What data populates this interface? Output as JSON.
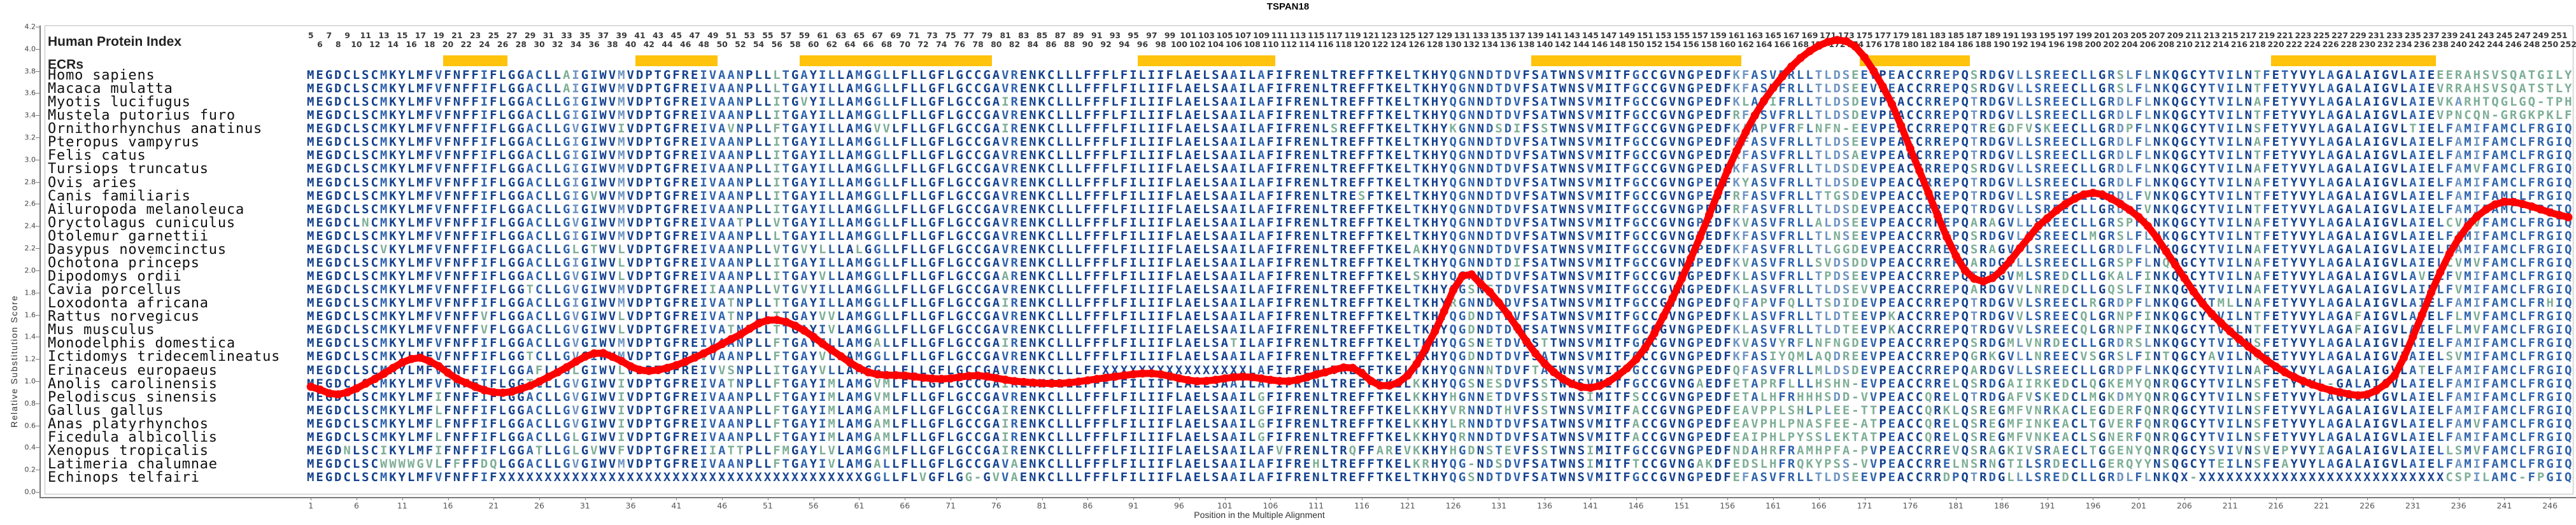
{
  "title": "TSPAN18",
  "header": {
    "human_protein_index_label": "Human Protein Index",
    "ecrs_label": "ECRs",
    "index_start": 5,
    "index_end": 252
  },
  "y_axis": {
    "label": "Relative Substitution Score",
    "min": 0.0,
    "max": 4.2,
    "step": 0.2
  },
  "x_axis": {
    "label": "Position in the Multiple Alignment",
    "tick_start": 1,
    "tick_step": 5,
    "tick_end": 246,
    "columns": 248
  },
  "ecr_regions": [
    [
      16,
      22
    ],
    [
      37,
      45
    ],
    [
      55,
      75
    ],
    [
      92,
      106
    ],
    [
      135,
      157
    ],
    [
      171,
      182
    ],
    [
      216,
      233
    ]
  ],
  "colors": {
    "ecr_bar": "#FFC30D",
    "curve": "#FF0000",
    "seq_conserved": "#14418D",
    "seq_high": "#2F63AC",
    "seq_mid": "#6E94C2",
    "seq_low": "#7EAE97",
    "axis": "#7a7a7a"
  },
  "alignment": {
    "species": [
      {
        "name": "Homo sapiens",
        "seq": "MEGDCLSCMKYLMFVFNFFIFLGGACLLAIGIWVMVDPTGFREIVAANPLLLTGAYILLAMGGLLFLLGFLGCCGAVRENKCLLLFFFLFILIIFLAELSAAILAFIFRENLTREFFTKELTKHYQGNNDTDVFSATWNSVMITFGCCGVNGPEDFKFASVFRLLTLDSEEVPEACCRREPQSRDGVLLSREECLLGRSLFLNKQGCYTVILNTFETYVYLAGALAIGVLAIEEERAHSVSQATGILY"
      },
      {
        "name": "Macaca mulatta",
        "seq": "MEGDCLSCMKYLMFVFNFFIFLGGACLLAIGIWVMVDPTGFREIVAANPLLLTGAYILLAMGGLLFLLGFLGCCGAVRENKCLLLFFFLFILIIFLAELSAAILAFIFRENLTREFFTKELTKHYQGNNDTDVFSATWNSVMITFGCCGVNGPEDFKFASVFRLLTLDSEEVPEACCRREPQSRDGVLLSREECLLGRSLFLNKQGCYTVILNTFETYVYLAGALAIGVLAIEVRRAHSVSQATSTLY"
      },
      {
        "name": "Myotis lucifugus",
        "seq": "MEGDCLSCMKYLMFVFNFFIFLGGACLLGIGIWVMVDPTGFREIVAANPLLITGVYILLAMGGLLFLLGFLGCCGAIRENKCLLLFFFLFILIIFLAELSAAILAFIFRENLTREFFTKELTKHYQGNNDTDVFSATWNSVMITFGCCGVNGPEDFKLASIFRLLTLDSDEVPEACCRREPQTRDGVLLSREECLLGRDLFLNKQGCYTVILNAFETYVYLAGALAIGVLAIEVKARHTQGLGQ-TPH"
      },
      {
        "name": "Mustela putorius furo",
        "seq": "MEGDCLSCMKYLMFVFNFFIFLGGACLLGIGIWVMVDPTGFREIVAANPLLITGAYILLAMGGLLFLLGFLGCCGAVRENKCLLLFFFLFILIIFLAELSAAILAFIFRENLTREFFTKELTKHYQGNNDTDVFSATWNSVMITFGCCGVNGPEDFRFASVFRLLTLDSDEVPEACCRREPQTRDGVLLSREECLLGRDLFLNKQGCYTVILNTFETYVYLAGALAIGVLAIEVPNCQN-GRGKPKLF"
      },
      {
        "name": "Ornithorhynchus anatinus",
        "seq": "MEGDCLSCMKYLMFVFNFFIFLGGACLLGVGIWVIVDPTGFREIVAVNPLLFTGAYILLAMGVVLFLLGFLGCCGAIRENKCLLLFFFLFILIIFLAELSAAILAFIFRENLSREFFTKELTKHYKGNNDSDIFSSTWNSVMITFGCCGVNGPEDFKAAPVFRFLNFN-EEVPEACCRREPQTREGDFVSKEECLLGRDPFLNKQGCYTVILNSFETYVYLAGALAIGVLTIELFAMIFAMCLFRGIQ"
      },
      {
        "name": "Pteropus vampyrus",
        "seq": "MEGDCLSCMKYLMFVFNFFIFLGGACLLGIGIWVMVDPTGFREIVAANPLLITGAYILLAMGGLLFLLGFLGCCGAVRENKCLLLFFFLFILIIFLAELSAAILAFIFRENLTREFFTKELTKHYQGNNDTDVFSATWNSVMITFGCCGVNGPEDFKFASVFRLLTLDSEEVPEACCRREPQTRDGVLLSREECLLGRDLFLNKQGCYTVILNAFETYVYLAGALAIGVLAIELFAMIFAMCLFRGIQ"
      },
      {
        "name": "Felis catus",
        "seq": "MEGDCLSCMKYLMFVFNFFIFLGGACLLGIGIWVMVDPTGFREIVAANPLLITGAYILLAMGGLLFLLGFLGCCGAVRENKCLLLFFFLFILIIFLAELSAAILAFIFRENLTREFFTKELTKHYQGNNDTDVFSATWNSVMITFGCCGVNGPEDFRFASVFRLLTLDSAEVPEACCRREPQTRDGVLLSREECLLGRDLFLNKQGCYTVILNTFETYVYLAGALAIGVLAIELFAMIFAMCLFRGIQ"
      },
      {
        "name": "Tursiops truncatus",
        "seq": "MEGDCLSCMKYLMFVFNFFIFLGGACLLGIGIWVMVDPTGFREIVAANPLLITGAYILLAMGGLLFLLGFLGCCGAVRENKCLLLFFFLFILIIFLAELSAAILAFIFRENLTREFFTKELTKHYQGNNDTDVFSATWNSVMITFGCCGVNGPEDFKFASVFRLLTLDSDEVPEACCRREPQSRDGVLLSREECLLGRDLFLNKQGCYTVILNAFETYVYLAGALAIGVLAIELFAMVFAMCLFRGIQ"
      },
      {
        "name": "Ovis aries",
        "seq": "MEGDCLSCMKYLMFVFNFFIFLGGACLLGIGIWVMVDPTGFREIVAANPLLITGAYILLAMGGLLFLLGFLGCCGAVRENKCLLLFFFLFILIIFLAELSAAILAFIFRENLTREFFTKELTKHYQGNNDTDVFSATWNSVMITFGCCGVNGPEDFKYASVFRLLTLDSDEVPEACCRREPQTRDGVLLSREECLLGRDLFLNKQGCYTVILNAFETYVYLAGALAIGVLAIELFAMIFAMCLFRGIQ"
      },
      {
        "name": "Canis familiaris",
        "seq": "MEGDCLSCMKYLMFVFNFFIFLGGACLLGIGVWVMVDPTGFREIVAANPLLITGAYILLAMGGLLFLLGFLGCCGAVRENKCLLLFFFLFILIIFLAELSAAILAFIFRENLTRESFTKELTKHYQGNNDTDVFSATWNSVMITFGCCGVNGPEDFRFASVFRLLTTGSDEVPEACCRREPQTRDGVLLSREECLLGRDLFVNKQGCYTVILNTFETYVYLAGALAIGVLAIELFAMIFAMCLFRGIQ"
      },
      {
        "name": "Ailuropoda melanoleuca",
        "seq": "MEGDCLSCMKYLMFVFNFFIFLGGACLLGIGIWVMVDPTGFREIVAANPLLITGAYILLAMGGLLFLLGFLGCCGAVRENKCLLLFFFLFILIIFLAELSAAILAFIFRENLTREFFTKELTKHYQGNNDTDVFSATWNSVMITFGCCGVNGPEDFRFASVFRLLTLDSDEVPEACCRREPQTRDGVLLSREECLLGRDLFVNKQGCYTVILNTFETYVYLAGALAIGVLAIELFAMIFAMCLFRGIQ"
      },
      {
        "name": "Oryctolagus cuniculus",
        "seq": "MEGDCLNCMKYLMFVFNFFIFLGGACLLGVGIWVMVDPTGFREIVAATPLLVTGAYILLAMGGLLFLLGFLGCCGAVRENKCLLLFFFLFILIIFLAELSAAILAFIFRENLTREFFTKELTKHYQGNNDTDVFSATWNSVMITFGCCGVNGPEDFKVASVFRLLALDSEEVPEACCRREPQARAGVLLSREECLLGRSPFLNKQGCYTVILNAFETYVYLAGALAIGVLAIELCVMVFAMCLFRGIQ"
      },
      {
        "name": "Otolemur garnettii",
        "seq": "MEGDCLSCMKYLMFVFNFFIFLGGACLLGIGIWVMVDPTGFREIVAANPLLLTGAYILLAMGGLLFLLGFLGCCGAVRENKCLLLFFFLFILIIFLAELSAAILAFIFRENLTREFFTKELTKHYQGNNDTDVFSATWNSVMITFGCCGVNGPEDFKFASVFRLLTLNSEEVPEACCRREPQSRDGVLLSREECLMGRSLFLNKQGCYTVILNTFETYVYLAGALAIGVLAIELFAMIFAMCLFRGIQ"
      },
      {
        "name": "Dasypus novemcinctus",
        "seq": "MEGDCLSCVKYLMFVFNFFIFLGGACLLGLGTWVLVDPTGFREIVAANPLLVTGVYLLLALGGLLFLLGFLGCCGAVRENKCLLLFFFLFILIIFLAELSAAILAFIFRENLTREFFTKELAKHYQGNNDTDVFSATWNSVMITFGCCGVNGPEDFKFASVFRLLTLGGDEVPEACCRREPQSRAGVVLSREECLLGRDLFLNKQGCYTVILNAFETYVYLAGALAIGVLAIELFAMIFAMCLFRGIQ"
      },
      {
        "name": "Ochotona princeps",
        "seq": "MEGDCLSCMKYLMFVFNFFIFLGGACLLGIGIWVLVDPTGFREIVAANPLLITGAYILLAMGGLLFLLGFLGCCGAVRENKCLLLFFFLFILIIFLAELSAAILAFIFRENLTREFFTKELTKHYQGNNDTDIFSATWNSVMITFGCCGVNGPEDFKVASVFRLLSVDSDDVPEACCRREPQARDGVLLSREECLLGRSPFLNQQGCYTVILNAFETYVYLAGALAIGVLAIELCVMVFAMCLFRGIQ"
      },
      {
        "name": "Dipodomys ordii",
        "seq": "MEGDCLSCMKYLMFVFNFFIFLGGACLLGVGIWVLVDPTGFREIVAANPLLITGAYVLLAMGGLLFLLGFLGCCGAARENKCLLLFFFLFILIIFLAELSAAILAFIFRENLTREFFTKELSKHYQGNNDTDVFSATWNSVMITFGCCGVNGPEDFKLASVFRLLTPDSEEVPEACCRREPQTRDGVMLSREDCLLGKALFINKQGCYTVILNAFETYVYLAGALAIGVLAVELFVMIFAMCLFRGIQ"
      },
      {
        "name": "Cavia porcellus",
        "seq": "MEGDCLSCMKYLMFVFNFFIFLGGTCLLGVGIWVMVDPTGFREIIAANPLLVTGVYILLAMGGLLFLLGFLGCCGAVRENKCLLLFFFLFILIIFLAELSAAILAFIFRENLTREFFTKELTKHYQGSNETDVFSATWNSVMITFGCCGVNGPEDFKLASVFRLLTLDSEVVPEACCRREPQARDGVVLNREDCLLGQSLFINKQGCYTVILNAFETYVYLAGALAIGVLAIELFVMIFAMCLFRGIQ"
      },
      {
        "name": "Loxodonta africana",
        "seq": "MEGDCLSCMKYLMFVFNFFIFLGGACLLGIGIWVMVDPTGFREIVATNPLLTTGAYILLAMGGLLFLLGFLGCCGAIRENKCLLLFFFLFILIIFLAELSAAILAFIFRENLTREFFTKELTKHYRGNNDSDVFSATWNSVMITFGCCGVNGPEDFQFAPVFQLLTSDIDEVPEACCRREPQTRDGVVLSREECLRGRDPFLNKQGCYTMLLNAFETYVYLAGALAIGVLAIELFAMIFAMCLFRHIQ"
      },
      {
        "name": "Rattus norvegicus",
        "seq": "MEGDCLSCMKYLMFVFNFFVFLGGACLLGVGIWVLVDPTGFREIVATNPLLTTGAYVVLAMGGLLFLLGFLGCCGAVRENKCLLLFFFLFILIIFLAELSAAILAFIFRENLTREFFTKELTKHYQGDNDTDVFSATWNSVMITFGCCGVNGPEDFKLASVFRLLTLDTEEVPKACCRREPQTRDGVVLSREECQLGRNPFINKQGCYTVILNTFETYVYLAGAFAIGVLAIELFLMVFAMCLFRGIQ"
      },
      {
        "name": "Mus musculus",
        "seq": "MEGDCLSCMKYLMFVFNFFVFLGGACLLGVGIWVLVDPTGFREIVATNPLLTTGAYIVLAMGGLLFLLGFLGCCGAVRENKCLLLFFFLFILIIFLAELSAAILAFIFRENLTREFFTKELTKHYQGDNDTDVFSATWNSVMITFGCCGVNGPEDFKLASVFRLLTLDTEEVPKACCRREPQTRDGVVLSREECQLGRNPFINKQGCYTVILNTFETYVYLAGAFAIGVLAIELFLMVFAMCLFRGIQ"
      },
      {
        "name": "Monodelphis domestica",
        "seq": "MEGDCLSCMKYLMFVFNFFIFLGGACLLGVGIWVMVDPTGFREIVAANPLLFTGAYILLAMGALLFLLGFLGCCGAIRENKCLLLFFFLFILIIFLAELSATILAFIFRENLTREFFTKELTKHYQGSNETDVFSTTWNSVMITFGCCGVNGPEDFKVASVYRFLNFNGDEVPEACCRREPQSRDGMLVNRDECLLGRDRSLNKQGCYTVILNSFETYVYLAGALAIGVLAIELFAMIFAMCLFRGIQ"
      },
      {
        "name": "Ictidomys tridecemlineatus",
        "seq": "MEGDCLSCMKYLMFVFNFFIFLGGTCLLGVGIWVMVDPTGFREVVAANPLLFTGAYVLLAMGGLLFLLGFLGCCGAVRENKCLLLFFFLFILIIFLAELSAAILAFIFRENLTREFFTKELTKHYQGDNDTDVFSATWNSVMITFGCCGVNGPEDFKFASIYQMLAQDREEVPEACCRREPQGRKGVLLNREECVSGRSLFINTQGCYAVILNTFETYVYLAGALAIGVLAIELSVMIFAMCLFRGIQ"
      },
      {
        "name": "Erinaceus europaeus",
        "seq": "MEGDCLSCMKYLMFVFNFFIFLGGAFLLGLGIWVLVDPTGFREIVVSNPLLITGAYVLLAMGGLLFLLGFLGCCGAVRENKCLLLFFXXXXXXXXXXXXXXXXLAFIFRENLTREFFTKELTKHYQGNNNTDVFTATWNSVMITFGCCGVNGPEDFQFASVFRLLMLDSDEVPEACCRREPQARDGVLLSREECLLGRDPFLNKQGCYTVILNAFETYVYLAGALAIGVLATELFAMIFAMCLFRGIQ"
      },
      {
        "name": "Anolis carolinensis",
        "seq": "MEGDCLSCMKYLMFVFNFFIFLGGTCLLGVGIWVIVDPTGFREIVATNPLLFTGAYIMLAMGVMLFLLGFLGCCGAIRENKCLLLFFFLFILIIFLAELSAAILAFIFRENLTREFFTKELKKHYQGSNESDVFSSTWNSVMITFGCCGVNGAEDFETAPRFLLLHSHN-EVPEACCRRELQSRDGAIIRKEDCLQGKEMYQNRQGCYTVILNSFETYVYL-GALAIGVLAIELFAMIFAMCLFRGIQ"
      },
      {
        "name": "Pelodiscus sinensis",
        "seq": "MEGDCLSCMKYLMFIFNFFIFLGGACLLGVGIWVIVDPTGFREIVAANPLLFTGAYIMLAMGVMLFLLGFLGCCGAVRENKCLLLFFFLFILIIFLAELSAAILGFIFRENLTREFFTKELKKHYHGNNETDVFSSTWNSIMITFSCCGVNGPEDFETALHFRHHHSDD-VVPEACCQRELQTRDGAFVSKEDCLMGKDMYQNRQGCYTVILNSFETYVYLAGALAIGVLAIELFAMIFAMCLFRGIQ"
      },
      {
        "name": "Gallus gallus",
        "seq": "MEGDCLSCMKYLMFLFNFFIFLGGACLLGVGIWVIVDPTGFREIVAANPLLFTGAYIMLAMGAMLFLLGFLGCCGAIRENKCLLLFFFLFILIIFLAELSAAILGFIFRENLTREFFTKELKKHYVRNNDTHVFSSTWNSVMITFACCGVNGPEDFEAVPPLSHLPLEE-TTPEACCQRKLQSREGMFVNRKACLEGDERFQNRQGCYTVILNSFETYVYLAGALAIGVLAIELFAMIFAMCLFRGIQ"
      },
      {
        "name": "Anas platyrhynchos",
        "seq": "MEGDCLSCMKYLMFLFNFFIFLGGACLLGVGIWVIVDPTGFREIVAANPLLFTGAYIMLAMGAMLFLLGFLGCCGAIRENKCLLLFFFLFILIIFLAELSAAILGFIFRENLTREFFTKELKKHYLRNNDTDVFSATWNSVMITFACCGVNGPEDFEAVPHLPNASFEE-ATPEACCQRELQSREGMFINKEACLTGVERFQNRQGCYTVILNSFETYVYLAGALAIGVLAIELFAMVFAMCLFRGIQ"
      },
      {
        "name": "Ficedula albicollis",
        "seq": "MEGDCLSCMKYLMFLFNFFIFLGGACLLGLGIWVIVDPTGFREIVAANPLLFTGAYIMLAMGAMLFLLGFLGCCGAIRENKCLLLFFFLFILIIFLAELSAAILGFIFRENLTREFFTKELKKHYQRNNDTDVFSATWNSVMITFACCGVNGPEDFEAIPHLPYSSLEKTATPEACCQRELQSREGMFVNKEACLSGNERFQNRQGCYTVILNSFETYVYLAGALAIGVLAIELFAMIFAMCLFRGIQ"
      },
      {
        "name": "Xenopus tropicalis",
        "seq": "MEGDNLSCIKYLMFIFNFFIFLGGATLLGLGVWVFVDPTGFREIIATTPLLFMGAYLVLAMGGMLFLLGFLGCCGAIRENKCLLLFFFLFILIIFLAELSAAILAFVFRENLTRQFFAREVKKHYHGDNSTEVFSSTWNSIMITFGCCGVNGPEDFNDAHRFRAMHPFA-PVPEACCRREVQSRAGKIVSRAECLTGGENYQNRQGCYSVIVNSVEPYVYIAGALAIGVLAIELLSMVFAMCLFRGIQ"
      },
      {
        "name": "Latimeria chalumnae",
        "seq": "MEGDCLSCWWWWGVLFFFFDQLGGACLLGVGIWVMVDPTGFREIVAANPLLFTGAYIVLAMGALLFLLGFLGCCGAVAENKCLLLFFFLFILIIFLAELSAAILAFIFREHLTREFFTKELKRHYQG-NDSDVFSATWNSIMITFTCCGVNGAKDFEDSLHFRQKYPSS-VVPEACCRRELNSRNGTILSRDECLLGERQYYNSQGCYTEILNSFEAYVYLAGALAIGVLAIELFAMIFAMCLFRGIQ"
      },
      {
        "name": "Echinops telfairi",
        "seq": "MEGDCLSCMKYLMFVFNFFIFXXXXXXXXXXXXXXXXXXXXXXXXXXXXXXXXXXXXXXXXGGLLFLVGFLGG-GVVAENKCLLLFFFLFILIIFLAELSAAILAFIFRENLTREFFTKELTKHYQGSNDTDVFSATWNSVMITFGCCGVNGPEDFEFASVFRLLTLDSEEVPEACCRRDPQTRDGLLLSREDCLLGRDLFLNKQX-XXXXXXXXXXXXXXXXXXXXXXXXXXXCSPILAMC-FPGIQ"
      }
    ]
  },
  "chart_data": {
    "type": "line",
    "title": "TSPAN18",
    "xlabel": "Position in the Multiple Alignment",
    "ylabel": "Relative Substitution Score",
    "xlim": [
      1,
      248
    ],
    "ylim": [
      0.0,
      4.2
    ],
    "grid": false,
    "legend": "none",
    "marker": "circle-every-position",
    "line_color": "#FF0000",
    "series": [
      {
        "name": "Relative Substitution Score",
        "points": [
          [
            1,
            0.95
          ],
          [
            4,
            0.88
          ],
          [
            8,
            1.02
          ],
          [
            12,
            1.2
          ],
          [
            14,
            1.18
          ],
          [
            17,
            1.02
          ],
          [
            21,
            0.9
          ],
          [
            24,
            0.93
          ],
          [
            28,
            1.08
          ],
          [
            32,
            1.25
          ],
          [
            34,
            1.22
          ],
          [
            37,
            1.1
          ],
          [
            40,
            1.12
          ],
          [
            44,
            1.25
          ],
          [
            48,
            1.42
          ],
          [
            51,
            1.55
          ],
          [
            54,
            1.5
          ],
          [
            58,
            1.28
          ],
          [
            62,
            1.08
          ],
          [
            66,
            1.05
          ],
          [
            70,
            1.02
          ],
          [
            74,
            1.05
          ],
          [
            78,
            1.0
          ],
          [
            83,
            0.98
          ],
          [
            88,
            1.03
          ],
          [
            93,
            1.07
          ],
          [
            98,
            1.0
          ],
          [
            103,
            1.04
          ],
          [
            108,
            1.0
          ],
          [
            112,
            1.08
          ],
          [
            115,
            1.12
          ],
          [
            118,
            0.96
          ],
          [
            121,
            1.05
          ],
          [
            124,
            1.45
          ],
          [
            127,
            1.95
          ],
          [
            129,
            1.88
          ],
          [
            132,
            1.6
          ],
          [
            135,
            1.25
          ],
          [
            138,
            1.02
          ],
          [
            141,
            0.94
          ],
          [
            144,
            1.05
          ],
          [
            147,
            1.3
          ],
          [
            150,
            1.75
          ],
          [
            153,
            2.3
          ],
          [
            156,
            2.9
          ],
          [
            159,
            3.4
          ],
          [
            162,
            3.75
          ],
          [
            165,
            3.98
          ],
          [
            168,
            4.08
          ],
          [
            170,
            4.02
          ],
          [
            172,
            3.8
          ],
          [
            174,
            3.5
          ],
          [
            176,
            3.1
          ],
          [
            178,
            2.7
          ],
          [
            180,
            2.3
          ],
          [
            182,
            2.0
          ],
          [
            184,
            1.9
          ],
          [
            186,
            2.0
          ],
          [
            188,
            2.2
          ],
          [
            190,
            2.4
          ],
          [
            193,
            2.6
          ],
          [
            196,
            2.7
          ],
          [
            199,
            2.6
          ],
          [
            202,
            2.4
          ],
          [
            205,
            2.05
          ],
          [
            208,
            1.7
          ],
          [
            211,
            1.45
          ],
          [
            214,
            1.25
          ],
          [
            217,
            1.08
          ],
          [
            220,
            0.97
          ],
          [
            223,
            0.9
          ],
          [
            226,
            0.88
          ],
          [
            229,
            1.05
          ],
          [
            231,
            1.4
          ],
          [
            233,
            1.8
          ],
          [
            235,
            2.15
          ],
          [
            237,
            2.4
          ],
          [
            239,
            2.55
          ],
          [
            241,
            2.62
          ],
          [
            243,
            2.6
          ],
          [
            245,
            2.55
          ],
          [
            247,
            2.5
          ],
          [
            248,
            2.48
          ]
        ]
      }
    ]
  }
}
